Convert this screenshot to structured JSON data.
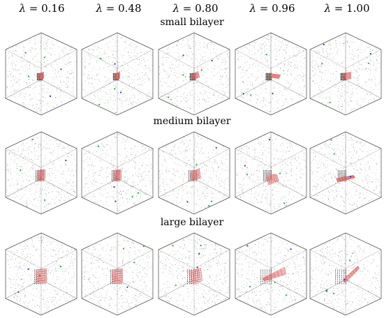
{
  "lambda_symbol": "λ",
  "columns": [
    "0.16",
    "0.48",
    "0.80",
    "0.96",
    "1.00"
  ],
  "rows": [
    {
      "title": "small bilayer"
    },
    {
      "title": "medium bilayer"
    },
    {
      "title": "large bilayer"
    }
  ],
  "colors": {
    "frame": "#444444",
    "solvent": "#777777",
    "bilayer": "#d84a4a",
    "bilayer_fill": "#f0b0b0",
    "core": "#222222",
    "ion_blue": "#2233cc",
    "ion_green": "#22aa33"
  }
}
